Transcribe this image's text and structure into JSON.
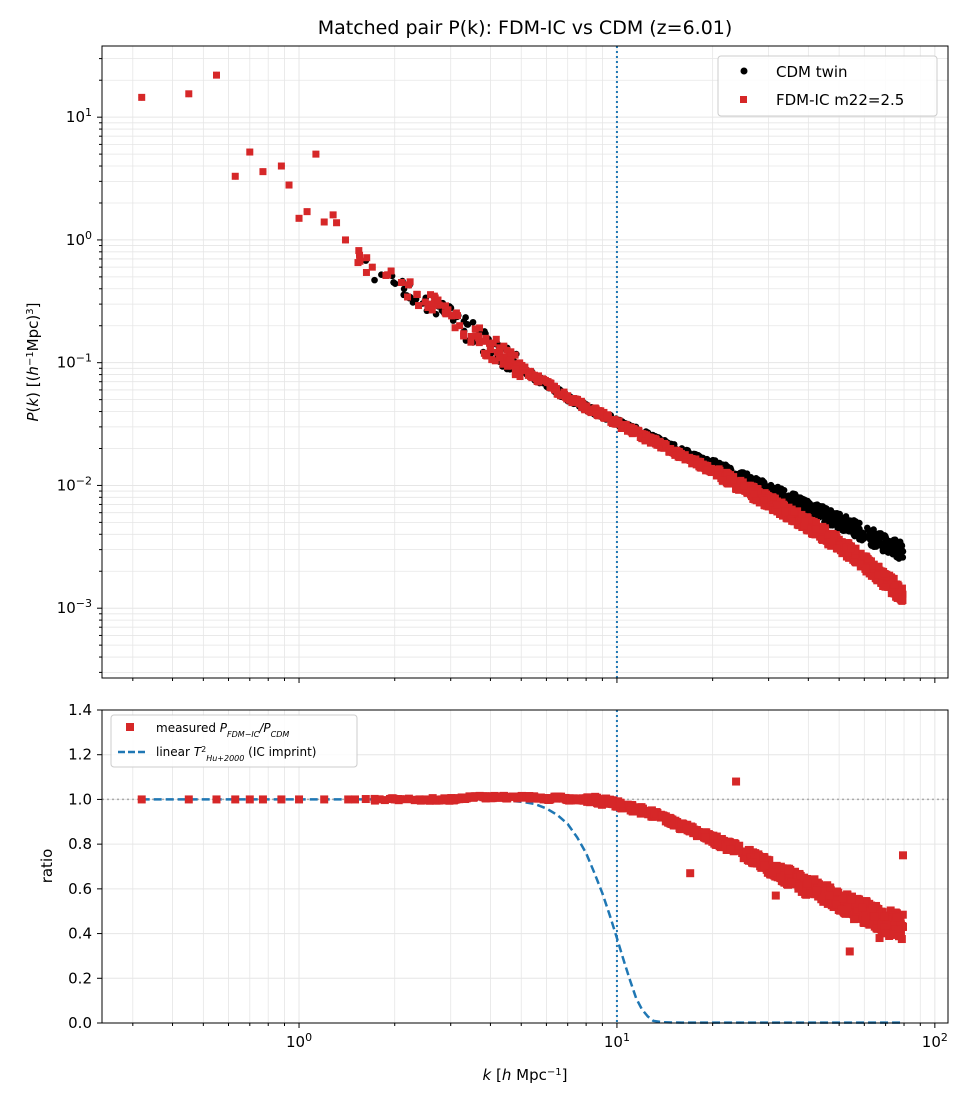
{
  "chart_data": [
    {
      "type": "scatter",
      "title": "Matched pair P(k): FDM-IC vs CDM (z=6.01)",
      "ylabel": "P(k) [(h^-1 Mpc)^3]",
      "xscale": "log",
      "yscale": "log",
      "xlim": [
        0.24,
        110
      ],
      "ylim": [
        0.00027,
        38
      ],
      "grid": true,
      "legend_position": "top-right",
      "x_tick_labels": [
        "10^0",
        "10^1",
        "10^2"
      ],
      "y_tick_labels": [
        "10^-3",
        "10^-2",
        "10^-1",
        "10^0",
        "10^1"
      ],
      "vline_x": 10,
      "series": [
        {
          "name": "CDM twin",
          "marker": "circle",
          "color": "#000000",
          "x": [
            0.32,
            0.45,
            0.55,
            0.63,
            0.7,
            0.77,
            0.88,
            0.93,
            1.0,
            1.06,
            1.13,
            1.2,
            1.28,
            1.4,
            1.55,
            1.7,
            1.9,
            2.1,
            2.35,
            2.6,
            2.9,
            3.2,
            3.6,
            4.0,
            4.5,
            5.0,
            5.6,
            6.3,
            7.0,
            7.9,
            8.9,
            10.0,
            11.2,
            12.6,
            14.1,
            15.8,
            17.8,
            20.0,
            22.4,
            25.1,
            28.2,
            31.6,
            35.5,
            39.8,
            44.7,
            50.1,
            56.2,
            63.1,
            70.8,
            79.4
          ],
          "y": [
            14.5,
            15.5,
            22.0,
            3.3,
            5.2,
            3.6,
            4.0,
            2.8,
            1.5,
            1.7,
            5.0,
            1.4,
            1.6,
            1.0,
            0.75,
            0.6,
            0.52,
            0.45,
            0.36,
            0.3,
            0.25,
            0.2,
            0.165,
            0.135,
            0.11,
            0.09,
            0.075,
            0.062,
            0.052,
            0.044,
            0.038,
            0.033,
            0.029,
            0.025,
            0.022,
            0.0192,
            0.0168,
            0.0147,
            0.0129,
            0.0113,
            0.0099,
            0.0087,
            0.0076,
            0.0066,
            0.0058,
            0.0051,
            0.0044,
            0.0038,
            0.0033,
            0.0029
          ]
        },
        {
          "name": "FDM-IC m22=2.5",
          "marker": "square",
          "color": "#d62728",
          "x": [
            0.32,
            0.45,
            0.55,
            0.63,
            0.7,
            0.77,
            0.88,
            0.93,
            1.0,
            1.06,
            1.13,
            1.2,
            1.28,
            1.4,
            1.55,
            1.7,
            1.9,
            2.1,
            2.35,
            2.6,
            2.9,
            3.2,
            3.6,
            4.0,
            4.5,
            5.0,
            5.6,
            6.3,
            7.0,
            7.9,
            8.9,
            10.0,
            11.2,
            12.6,
            14.1,
            15.8,
            17.8,
            20.0,
            22.4,
            25.1,
            28.2,
            31.6,
            35.5,
            39.8,
            44.7,
            50.1,
            56.2,
            63.1,
            70.8,
            79.4
          ],
          "y": [
            14.5,
            15.5,
            22.0,
            3.3,
            5.2,
            3.6,
            4.0,
            2.8,
            1.5,
            1.7,
            5.0,
            1.4,
            1.6,
            1.0,
            0.75,
            0.6,
            0.52,
            0.45,
            0.36,
            0.3,
            0.25,
            0.2,
            0.165,
            0.135,
            0.11,
            0.09,
            0.075,
            0.062,
            0.052,
            0.044,
            0.038,
            0.032,
            0.0278,
            0.0238,
            0.0207,
            0.0178,
            0.0153,
            0.0131,
            0.0112,
            0.0095,
            0.0081,
            0.0069,
            0.0058,
            0.0048,
            0.004,
            0.0033,
            0.0027,
            0.0021,
            0.00165,
            0.0013
          ]
        }
      ]
    },
    {
      "type": "scatter",
      "ylabel": "ratio",
      "xlabel": "k [h Mpc^-1]",
      "xscale": "log",
      "xlim": [
        0.24,
        110
      ],
      "ylim": [
        0.0,
        1.4
      ],
      "yticks": [
        0.0,
        0.2,
        0.4,
        0.6,
        0.8,
        1.0,
        1.2,
        1.4
      ],
      "y_tick_labels": [
        "0.0",
        "0.2",
        "0.4",
        "0.6",
        "0.8",
        "1.0",
        "1.2",
        "1.4"
      ],
      "x_tick_labels": [
        "10^0",
        "10^1",
        "10^2"
      ],
      "grid": true,
      "legend_position": "top-left",
      "hline_y": 1.0,
      "vline_x": 10,
      "series": [
        {
          "name": "measured P_FDM-IC/P_CDM",
          "marker": "square",
          "color": "#d62728",
          "x": [
            0.32,
            0.45,
            0.55,
            0.63,
            0.7,
            0.77,
            0.88,
            1.0,
            1.2,
            1.5,
            2.0,
            2.5,
            3.0,
            3.5,
            4.0,
            4.5,
            5.0,
            5.5,
            6.0,
            6.5,
            7.0,
            7.5,
            8.0,
            8.5,
            9.0,
            9.5,
            10.0,
            10.6,
            11.2,
            12.0,
            12.6,
            13.5,
            14.1,
            15.0,
            15.8,
            17.0,
            17.8,
            19.0,
            20.0,
            21.0,
            22.4,
            23.7,
            25.1,
            26.6,
            28.2,
            30.0,
            31.6,
            33.5,
            35.5,
            37.6,
            39.8,
            42.2,
            44.7,
            47.3,
            50.1,
            53.1,
            56.2,
            59.6,
            63.1,
            66.8,
            70.8,
            75.0,
            79.4,
            23.7,
            17.0,
            31.6,
            54.0,
            79.4,
            50.1,
            67.0
          ],
          "y": [
            1.0,
            1.0,
            1.0,
            1.0,
            1.0,
            1.0,
            1.0,
            1.0,
            1.0,
            1.0,
            1.0,
            1.0,
            1.0,
            1.01,
            1.01,
            1.01,
            1.01,
            1.01,
            1.0,
            1.01,
            1.0,
            1.0,
            1.0,
            1.0,
            0.99,
            0.99,
            0.98,
            0.97,
            0.96,
            0.95,
            0.94,
            0.93,
            0.92,
            0.9,
            0.88,
            0.87,
            0.85,
            0.84,
            0.82,
            0.81,
            0.79,
            0.78,
            0.76,
            0.74,
            0.72,
            0.7,
            0.68,
            0.66,
            0.65,
            0.63,
            0.61,
            0.6,
            0.58,
            0.56,
            0.55,
            0.53,
            0.51,
            0.5,
            0.48,
            0.47,
            0.45,
            0.44,
            0.43,
            1.08,
            0.67,
            0.57,
            0.32,
            0.75,
            0.52,
            0.38
          ]
        },
        {
          "name": "linear T^2_Hu+2000 (IC imprint)",
          "style": "dashed",
          "color": "#1f77b4",
          "x": [
            0.32,
            0.5,
            1.0,
            2.0,
            3.0,
            4.0,
            5.0,
            5.5,
            6.0,
            6.5,
            7.0,
            7.5,
            8.0,
            8.5,
            9.0,
            9.5,
            10.0,
            10.5,
            11.0,
            11.5,
            12.0,
            12.5,
            13.0,
            14.0,
            16.0,
            20.0,
            40.0,
            79.4
          ],
          "y": [
            1.0,
            1.0,
            1.0,
            1.0,
            1.0,
            1.0,
            0.99,
            0.98,
            0.96,
            0.93,
            0.89,
            0.83,
            0.76,
            0.67,
            0.58,
            0.48,
            0.38,
            0.28,
            0.19,
            0.11,
            0.06,
            0.03,
            0.01,
            0.003,
            0.002,
            0.002,
            0.002,
            0.002
          ]
        }
      ]
    }
  ]
}
